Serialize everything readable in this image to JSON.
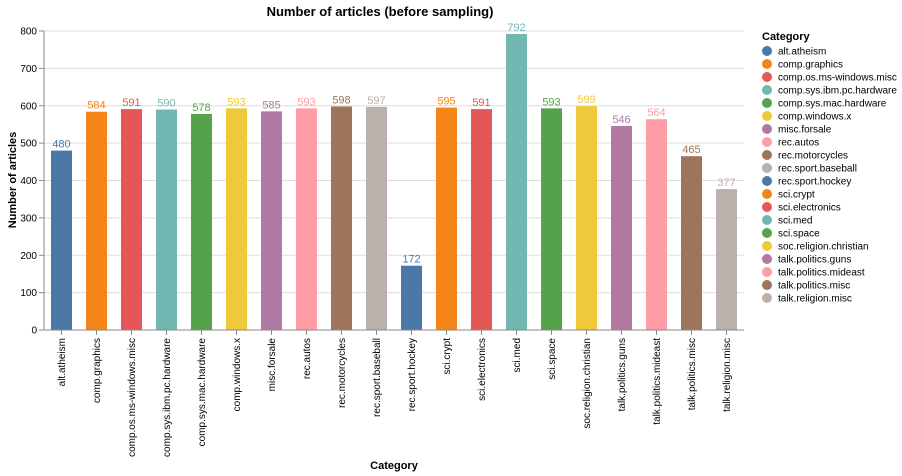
{
  "chart_data": {
    "type": "bar",
    "title": "Number of articles (before sampling)",
    "xlabel": "Category",
    "ylabel": "Number of articles",
    "ylim": [
      0,
      800
    ],
    "yticks": [
      0,
      100,
      200,
      300,
      400,
      500,
      600,
      700,
      800
    ],
    "grid": true,
    "legend_position": "right",
    "legend_title": "Category",
    "categories": [
      "alt.atheism",
      "comp.graphics",
      "comp.os.ms-windows.misc",
      "comp.sys.ibm.pc.hardware",
      "comp.sys.mac.hardware",
      "comp.windows.x",
      "misc.forsale",
      "rec.autos",
      "rec.motorcycles",
      "rec.sport.baseball",
      "rec.sport.hockey",
      "sci.crypt",
      "sci.electronics",
      "sci.med",
      "sci.space",
      "soc.religion.christian",
      "talk.politics.guns",
      "talk.politics.mideast",
      "talk.politics.misc",
      "talk.religion.misc"
    ],
    "values": [
      480,
      584,
      591,
      590,
      578,
      593,
      585,
      593,
      598,
      597,
      172,
      595,
      591,
      792,
      593,
      599,
      546,
      564,
      465,
      377
    ],
    "colors": [
      "#4c78a8",
      "#f58518",
      "#e45756",
      "#72b7b2",
      "#54a24b",
      "#eeca3b",
      "#b279a2",
      "#ff9da6",
      "#9d755d",
      "#bab0ac",
      "#4c78a8",
      "#f58518",
      "#e45756",
      "#72b7b2",
      "#54a24b",
      "#eeca3b",
      "#b279a2",
      "#ff9da6",
      "#9d755d",
      "#bab0ac"
    ]
  }
}
